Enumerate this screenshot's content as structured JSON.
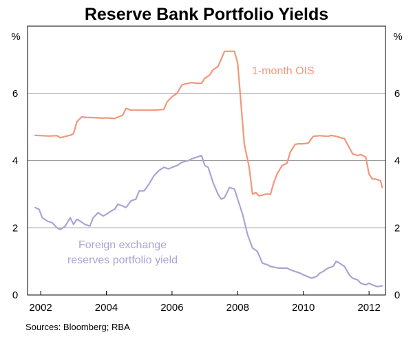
{
  "chart_data": {
    "type": "line",
    "title": "Reserve Bank Portfolio Yields",
    "y_unit_left": "%",
    "y_unit_right": "%",
    "xlim": [
      2001.6,
      2012.5
    ],
    "ylim": [
      0,
      8
    ],
    "x_ticks": [
      2002,
      2004,
      2006,
      2008,
      2010,
      2012
    ],
    "x_tick_labels": [
      "2002",
      "2004",
      "2006",
      "2008",
      "2010",
      "2012"
    ],
    "y_ticks": [
      0,
      2,
      4,
      6
    ],
    "y_tick_labels": [
      "0",
      "2",
      "4",
      "6"
    ],
    "grid": true,
    "source": "Sources: Bloomberg; RBA",
    "series": [
      {
        "name": "1-month OIS",
        "label": "1-month OIS",
        "color": "#F4967A",
        "x": [
          2001.83,
          2002.25,
          2002.5,
          2002.6,
          2002.75,
          2002.92,
          2003.0,
          2003.1,
          2003.25,
          2003.4,
          2003.5,
          2003.75,
          2003.9,
          2004.0,
          2004.25,
          2004.5,
          2004.6,
          2004.75,
          2004.9,
          2005.0,
          2005.5,
          2005.75,
          2005.85,
          2006.0,
          2006.15,
          2006.3,
          2006.4,
          2006.6,
          2006.75,
          2006.9,
          2007.0,
          2007.15,
          2007.25,
          2007.4,
          2007.6,
          2007.75,
          2007.9,
          2008.0,
          2008.2,
          2008.35,
          2008.45,
          2008.55,
          2008.65,
          2008.75,
          2008.85,
          2009.0,
          2009.1,
          2009.2,
          2009.35,
          2009.5,
          2009.6,
          2009.75,
          2009.85,
          2010.0,
          2010.15,
          2010.3,
          2010.5,
          2010.75,
          2010.85,
          2011.0,
          2011.25,
          2011.5,
          2011.65,
          2011.75,
          2011.9,
          2012.0,
          2012.1,
          2012.2,
          2012.35,
          2012.4
        ],
        "values": [
          4.75,
          4.73,
          4.74,
          4.68,
          4.72,
          4.76,
          4.8,
          5.15,
          5.3,
          5.28,
          5.28,
          5.27,
          5.26,
          5.27,
          5.25,
          5.35,
          5.55,
          5.5,
          5.5,
          5.5,
          5.5,
          5.52,
          5.75,
          5.9,
          6.0,
          6.25,
          6.28,
          6.32,
          6.3,
          6.3,
          6.45,
          6.55,
          6.7,
          6.8,
          7.25,
          7.25,
          7.25,
          6.9,
          4.5,
          3.8,
          3.0,
          3.05,
          2.95,
          2.97,
          3.0,
          3.0,
          3.35,
          3.6,
          3.85,
          3.92,
          4.25,
          4.48,
          4.5,
          4.5,
          4.52,
          4.72,
          4.74,
          4.72,
          4.75,
          4.72,
          4.65,
          4.2,
          4.15,
          4.18,
          4.1,
          3.6,
          3.45,
          3.45,
          3.4,
          3.2
        ]
      },
      {
        "name": "Foreign exchange reserves portfolio yield",
        "label_lines": [
          "Foreign exchange",
          "reserves portfolio yield"
        ],
        "color": "#A9A4D4",
        "x": [
          2001.83,
          2001.95,
          2002.05,
          2002.2,
          2002.35,
          2002.5,
          2002.6,
          2002.75,
          2002.9,
          2003.0,
          2003.1,
          2003.2,
          2003.35,
          2003.5,
          2003.6,
          2003.75,
          2003.9,
          2004.0,
          2004.15,
          2004.25,
          2004.35,
          2004.5,
          2004.6,
          2004.75,
          2004.9,
          2005.0,
          2005.15,
          2005.3,
          2005.45,
          2005.6,
          2005.75,
          2005.9,
          2006.0,
          2006.15,
          2006.3,
          2006.5,
          2006.6,
          2006.75,
          2006.9,
          2007.0,
          2007.1,
          2007.25,
          2007.4,
          2007.5,
          2007.6,
          2007.75,
          2007.9,
          2008.0,
          2008.15,
          2008.3,
          2008.45,
          2008.6,
          2008.75,
          2008.9,
          2009.0,
          2009.25,
          2009.5,
          2009.6,
          2009.75,
          2009.9,
          2010.0,
          2010.25,
          2010.4,
          2010.5,
          2010.6,
          2010.75,
          2010.9,
          2011.0,
          2011.1,
          2011.25,
          2011.4,
          2011.5,
          2011.65,
          2011.75,
          2011.9,
          2012.0,
          2012.1,
          2012.25,
          2012.4
        ],
        "values": [
          2.6,
          2.55,
          2.3,
          2.2,
          2.15,
          2.0,
          1.95,
          2.05,
          2.3,
          2.1,
          2.25,
          2.2,
          2.1,
          2.05,
          2.3,
          2.45,
          2.35,
          2.4,
          2.5,
          2.55,
          2.7,
          2.65,
          2.6,
          2.8,
          2.85,
          3.1,
          3.1,
          3.3,
          3.55,
          3.7,
          3.8,
          3.75,
          3.8,
          3.85,
          3.95,
          4.0,
          4.05,
          4.1,
          4.15,
          3.85,
          3.8,
          3.35,
          3.0,
          2.85,
          2.9,
          3.2,
          3.15,
          2.85,
          2.4,
          1.8,
          1.4,
          1.3,
          0.95,
          0.9,
          0.85,
          0.8,
          0.8,
          0.75,
          0.7,
          0.65,
          0.6,
          0.5,
          0.55,
          0.65,
          0.7,
          0.8,
          0.85,
          1.0,
          0.95,
          0.85,
          0.6,
          0.5,
          0.45,
          0.35,
          0.3,
          0.35,
          0.3,
          0.25,
          0.27
        ]
      }
    ]
  }
}
